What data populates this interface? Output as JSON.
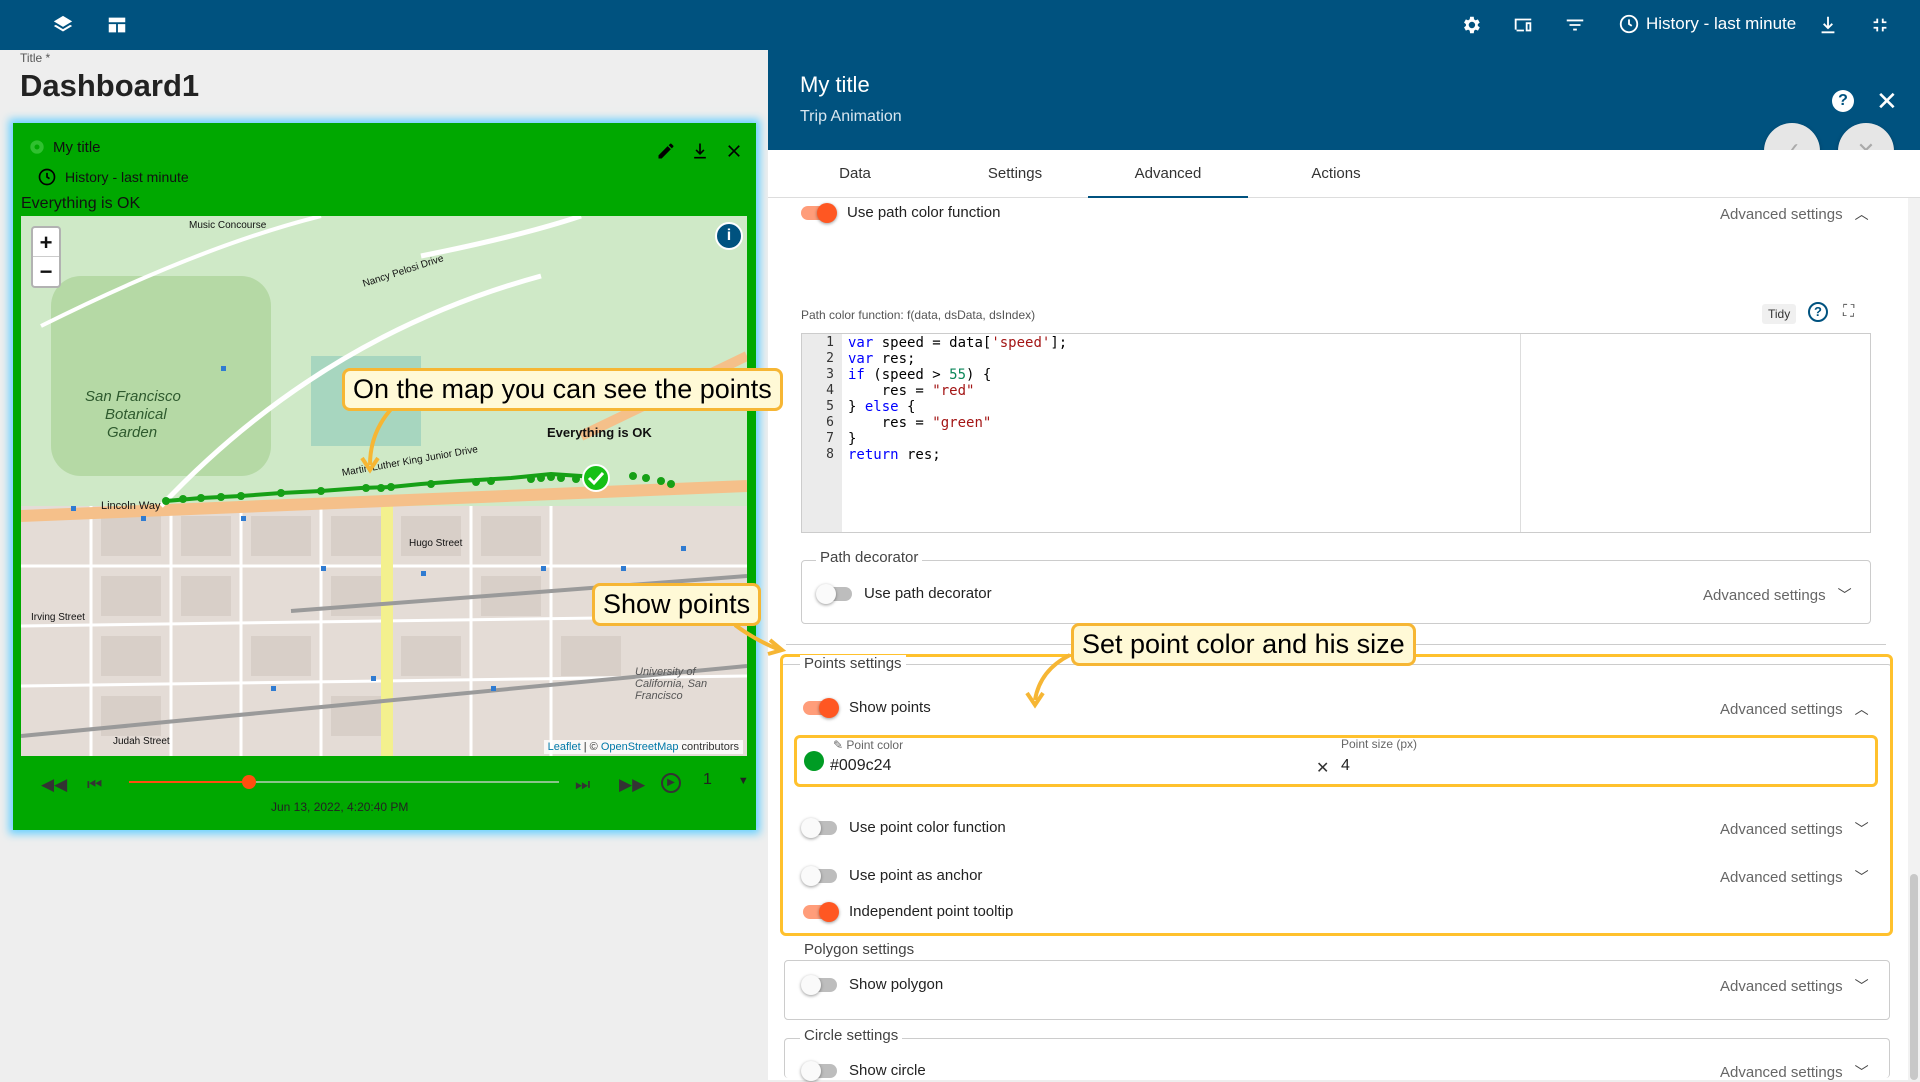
{
  "topbar": {
    "icons": [
      "layers-icon",
      "dashboard-icon",
      "gear-icon",
      "devices-icon",
      "filter-icon",
      "download-icon",
      "fullscreen-exit-icon"
    ],
    "history_label": "History - last minute"
  },
  "dashboard": {
    "title_label": "Title *",
    "title": "Dashboard1"
  },
  "widget": {
    "title": "My title",
    "history": "History - last minute",
    "status": "Everything is OK",
    "map": {
      "marker_label": "Everything is OK",
      "attribution_leaflet": "Leaflet",
      "attribution_sep": " | © ",
      "attribution_osm": "OpenStreetMap",
      "attribution_tail": " contributors",
      "labels": [
        {
          "text": "San Francisco"
        },
        {
          "text": "Botanical"
        },
        {
          "text": "Garden"
        },
        {
          "text": "Lincoln Way"
        },
        {
          "text": "Irving Street"
        },
        {
          "text": "Judah Street"
        },
        {
          "text": "Hugo Street"
        },
        {
          "text": "Martin Luther King Junior Drive"
        },
        {
          "text": "Nancy Pelosi Drive"
        },
        {
          "text": "Music Concourse"
        },
        {
          "text": "University of California, San Francisco"
        }
      ]
    },
    "timeline": {
      "date": "Jun 13, 2022, 4:20:40 PM",
      "speed": "1",
      "progress": 0.28
    }
  },
  "panel": {
    "title": "My title",
    "subtitle": "Trip Animation",
    "tabs": [
      "Data",
      "Settings",
      "Advanced",
      "Actions"
    ],
    "active_tab": "Advanced",
    "advanced_label": "Advanced settings",
    "path_color_function": {
      "label": "Use path color function",
      "code_label": "Path color function: f(data, dsData, dsIndex)",
      "tidy": "Tidy",
      "lines": [
        "1",
        "2",
        "3",
        "4",
        "5",
        "6",
        "7",
        "8"
      ]
    },
    "path_decorator": {
      "legend": "Path decorator",
      "toggle_label": "Use path decorator"
    },
    "points_settings": {
      "legend": "Points settings",
      "show_points": "Show points",
      "point_color_label": "Point color",
      "point_color_value": "#009c24",
      "point_size_label": "Point size (px)",
      "point_size_value": "4",
      "use_point_color_function": "Use point color function",
      "use_point_as_anchor": "Use point as anchor",
      "independent_point_tooltip": "Independent point tooltip"
    },
    "polygon_settings": {
      "legend": "Polygon settings",
      "toggle_label": "Show polygon"
    },
    "circle_settings": {
      "legend": "Circle settings",
      "toggle_label": "Show circle"
    }
  },
  "callouts": {
    "map_points": "On the map you can see the points",
    "show_points": "Show points",
    "point_color": "Set point color and his size"
  },
  "colors": {
    "header": "#00527f",
    "widget_bg": "#00a800",
    "accent": "#ff5722",
    "point": "#009c24",
    "callout_border": "#f6b634"
  }
}
